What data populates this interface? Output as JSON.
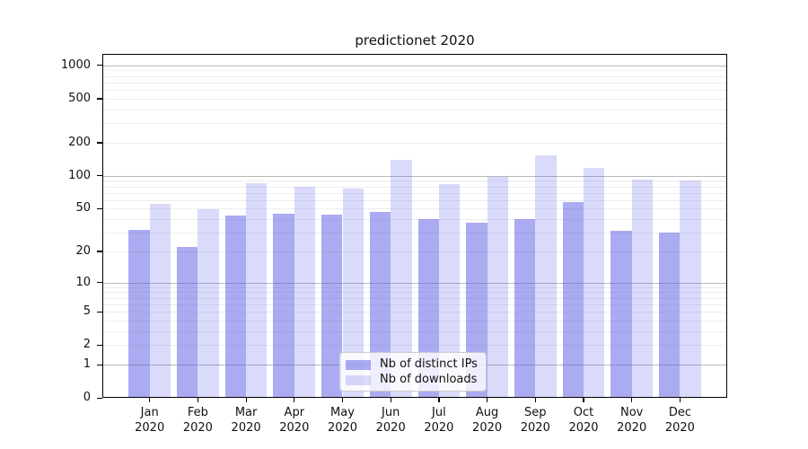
{
  "title": "predictionet 2020",
  "legend": {
    "items": [
      {
        "label": "Nb of distinct IPs",
        "color": "rgba(88,88,230,0.5)"
      },
      {
        "label": "Nb of downloads",
        "color": "rgba(88,88,230,0.22)"
      }
    ]
  },
  "chart_data": {
    "type": "bar",
    "title": "predictionet 2020",
    "months": [
      "Jan",
      "Feb",
      "Mar",
      "Apr",
      "May",
      "Jun",
      "Jul",
      "Aug",
      "Sep",
      "Oct",
      "Nov",
      "Dec"
    ],
    "year": "2020",
    "categories": [
      "Jan 2020",
      "Feb 2020",
      "Mar 2020",
      "Apr 2020",
      "May 2020",
      "Jun 2020",
      "Jul 2020",
      "Aug 2020",
      "Sep 2020",
      "Oct 2020",
      "Nov 2020",
      "Dec 2020"
    ],
    "series": [
      {
        "name": "Nb of distinct IPs",
        "values": [
          32,
          22,
          43,
          45,
          44,
          47,
          40,
          37,
          40,
          58,
          31,
          30
        ]
      },
      {
        "name": "Nb of downloads",
        "values": [
          55,
          49,
          86,
          79,
          77,
          140,
          84,
          97,
          152,
          118,
          93,
          91
        ]
      }
    ],
    "yscale": "log1p",
    "yticks": [
      0,
      1,
      2,
      5,
      10,
      20,
      50,
      100,
      200,
      500,
      1000
    ],
    "ylim": [
      0,
      1265
    ],
    "grid": true,
    "legend_position": "inside lower-center",
    "xlabel": "",
    "ylabel": ""
  },
  "colors": {
    "bar_dark": "rgba(88,88,230,0.5)",
    "bar_light": "rgba(88,88,230,0.22)",
    "grid_major": "#b9b9b9",
    "grid_minor": "#ededed",
    "spine": "#000000",
    "legend_border": "#cccccc",
    "legend_bg": "rgba(255,255,255,0.8)"
  }
}
